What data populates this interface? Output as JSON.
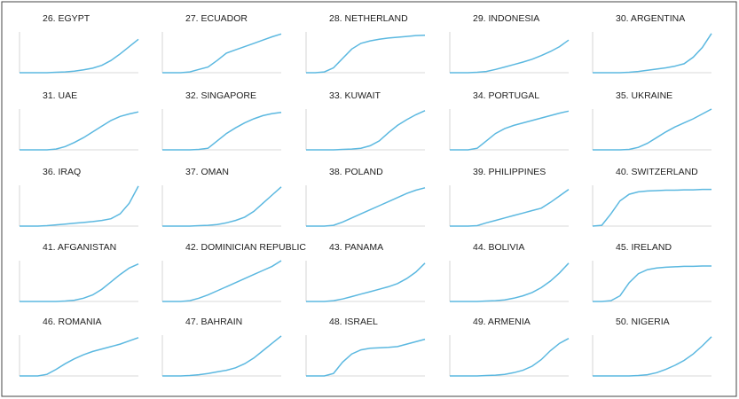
{
  "chart_data": [
    {
      "type": "line",
      "title": "26. EGYPT",
      "ylim": [
        0,
        100
      ],
      "color": "#5bb8e0",
      "values": [
        0,
        0,
        0,
        0,
        1,
        2,
        4,
        7,
        11,
        18,
        30,
        46,
        64,
        82
      ]
    },
    {
      "type": "line",
      "title": "27. ECUADOR",
      "ylim": [
        0,
        100
      ],
      "color": "#5bb8e0",
      "values": [
        0,
        0,
        0,
        2,
        8,
        14,
        30,
        48,
        56,
        64,
        72,
        80,
        88,
        95
      ]
    },
    {
      "type": "line",
      "title": "28. NETHERLAND",
      "ylim": [
        0,
        100
      ],
      "color": "#5bb8e0",
      "values": [
        0,
        0,
        2,
        12,
        35,
        58,
        72,
        78,
        82,
        85,
        87,
        89,
        91,
        92
      ]
    },
    {
      "type": "line",
      "title": "29. INDONESIA",
      "ylim": [
        0,
        100
      ],
      "color": "#5bb8e0",
      "values": [
        0,
        0,
        0,
        1,
        3,
        8,
        14,
        20,
        26,
        33,
        42,
        52,
        64,
        80
      ]
    },
    {
      "type": "line",
      "title": "30. ARGENTINA",
      "ylim": [
        0,
        100
      ],
      "color": "#5bb8e0",
      "values": [
        0,
        0,
        0,
        0,
        1,
        3,
        6,
        9,
        12,
        16,
        22,
        38,
        62,
        96
      ]
    },
    {
      "type": "line",
      "title": "31. UAE",
      "ylim": [
        0,
        100
      ],
      "color": "#5bb8e0",
      "values": [
        0,
        0,
        0,
        0,
        2,
        8,
        18,
        30,
        44,
        58,
        72,
        82,
        88,
        93
      ]
    },
    {
      "type": "line",
      "title": "32. SINGAPORE",
      "ylim": [
        0,
        100
      ],
      "color": "#5bb8e0",
      "values": [
        0,
        0,
        0,
        0,
        1,
        4,
        22,
        40,
        54,
        66,
        76,
        84,
        89,
        92
      ]
    },
    {
      "type": "line",
      "title": "33. KUWAIT",
      "ylim": [
        0,
        100
      ],
      "color": "#5bb8e0",
      "values": [
        0,
        0,
        0,
        0,
        1,
        2,
        4,
        10,
        22,
        42,
        60,
        74,
        86,
        96
      ]
    },
    {
      "type": "line",
      "title": "34. PORTUGAL",
      "ylim": [
        0,
        100
      ],
      "color": "#5bb8e0",
      "values": [
        0,
        0,
        0,
        4,
        22,
        40,
        52,
        60,
        66,
        72,
        78,
        84,
        90,
        95
      ]
    },
    {
      "type": "line",
      "title": "35. UKRAINE",
      "ylim": [
        0,
        100
      ],
      "color": "#5bb8e0",
      "values": [
        0,
        0,
        0,
        0,
        1,
        6,
        16,
        30,
        44,
        56,
        66,
        76,
        88,
        100
      ]
    },
    {
      "type": "line",
      "title": "36. IRAQ",
      "ylim": [
        0,
        100
      ],
      "color": "#5bb8e0",
      "values": [
        0,
        0,
        0,
        1,
        3,
        5,
        7,
        9,
        11,
        14,
        18,
        30,
        56,
        98
      ]
    },
    {
      "type": "line",
      "title": "37. OMAN",
      "ylim": [
        0,
        100
      ],
      "color": "#5bb8e0",
      "values": [
        0,
        0,
        0,
        0,
        1,
        2,
        4,
        8,
        14,
        22,
        36,
        56,
        76,
        96
      ]
    },
    {
      "type": "line",
      "title": "38. POLAND",
      "ylim": [
        0,
        100
      ],
      "color": "#5bb8e0",
      "values": [
        0,
        0,
        0,
        2,
        10,
        20,
        30,
        40,
        50,
        60,
        70,
        80,
        88,
        94
      ]
    },
    {
      "type": "line",
      "title": "39. PHILIPPINES",
      "ylim": [
        0,
        100
      ],
      "color": "#5bb8e0",
      "values": [
        0,
        0,
        0,
        1,
        8,
        14,
        20,
        26,
        32,
        38,
        44,
        58,
        74,
        90
      ]
    },
    {
      "type": "line",
      "title": "40. SWITZERLAND",
      "ylim": [
        0,
        100
      ],
      "color": "#5bb8e0",
      "values": [
        0,
        2,
        30,
        62,
        78,
        84,
        86,
        87,
        88,
        88,
        89,
        89,
        90,
        90
      ]
    },
    {
      "type": "line",
      "title": "41. AFGANISTAN",
      "ylim": [
        0,
        100
      ],
      "color": "#5bb8e0",
      "values": [
        0,
        0,
        0,
        0,
        0,
        1,
        3,
        8,
        16,
        30,
        48,
        66,
        82,
        92
      ]
    },
    {
      "type": "line",
      "title": "42. DOMINICIAN REPUBLIC",
      "ylim": [
        0,
        100
      ],
      "color": "#5bb8e0",
      "values": [
        0,
        0,
        0,
        2,
        8,
        16,
        26,
        36,
        46,
        56,
        66,
        76,
        86,
        100
      ]
    },
    {
      "type": "line",
      "title": "43. PANAMA",
      "ylim": [
        0,
        100
      ],
      "color": "#5bb8e0",
      "values": [
        0,
        0,
        0,
        2,
        6,
        12,
        18,
        24,
        30,
        36,
        44,
        56,
        72,
        94
      ]
    },
    {
      "type": "line",
      "title": "44. BOLIVIA",
      "ylim": [
        0,
        100
      ],
      "color": "#5bb8e0",
      "values": [
        0,
        0,
        0,
        0,
        1,
        2,
        4,
        8,
        14,
        22,
        34,
        50,
        70,
        94
      ]
    },
    {
      "type": "line",
      "title": "45. IRELAND",
      "ylim": [
        0,
        100
      ],
      "color": "#5bb8e0",
      "values": [
        0,
        0,
        2,
        14,
        46,
        68,
        78,
        82,
        84,
        85,
        86,
        86,
        87,
        87
      ]
    },
    {
      "type": "line",
      "title": "46. ROMANIA",
      "ylim": [
        0,
        100
      ],
      "color": "#5bb8e0",
      "values": [
        0,
        0,
        0,
        4,
        16,
        30,
        42,
        52,
        60,
        66,
        72,
        78,
        86,
        94
      ]
    },
    {
      "type": "line",
      "title": "47. BAHRAIN",
      "ylim": [
        0,
        100
      ],
      "color": "#5bb8e0",
      "values": [
        0,
        0,
        0,
        1,
        3,
        6,
        10,
        14,
        20,
        30,
        44,
        62,
        80,
        98
      ]
    },
    {
      "type": "line",
      "title": "48. ISRAEL",
      "ylim": [
        0,
        100
      ],
      "color": "#5bb8e0",
      "values": [
        0,
        0,
        0,
        6,
        34,
        54,
        64,
        68,
        69,
        70,
        72,
        78,
        84,
        90
      ]
    },
    {
      "type": "line",
      "title": "49. ARMENIA",
      "ylim": [
        0,
        100
      ],
      "color": "#5bb8e0",
      "values": [
        0,
        0,
        0,
        0,
        1,
        2,
        4,
        8,
        14,
        24,
        40,
        62,
        80,
        92
      ]
    },
    {
      "type": "line",
      "title": "50. NIGERIA",
      "ylim": [
        0,
        100
      ],
      "color": "#5bb8e0",
      "values": [
        0,
        0,
        0,
        0,
        0,
        1,
        3,
        8,
        16,
        26,
        38,
        54,
        74,
        96
      ]
    }
  ]
}
